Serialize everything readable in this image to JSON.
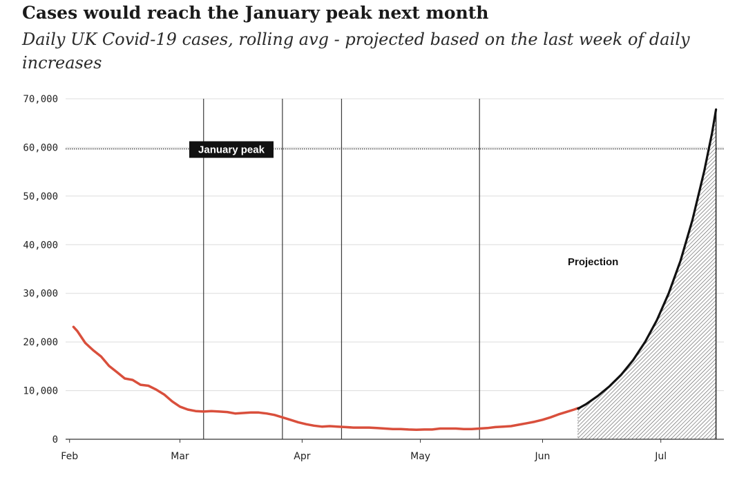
{
  "chart_data": {
    "type": "line",
    "title": "Cases would reach the January peak next month",
    "subtitle": "Daily UK Covid-19 cases, rolling avg - projected based on the last week of daily increases",
    "xlabel": "",
    "ylabel": "",
    "ylim": [
      0,
      70000
    ],
    "y_ticks": [
      0,
      10000,
      20000,
      30000,
      40000,
      50000,
      60000,
      70000
    ],
    "y_tick_labels": [
      "0",
      "10,000",
      "20,000",
      "30,000",
      "40,000",
      "50,000",
      "60,000",
      "70,000"
    ],
    "x_ticks": [
      {
        "label": "Feb",
        "day": 0
      },
      {
        "label": "Mar",
        "day": 28
      },
      {
        "label": "Apr",
        "day": 59
      },
      {
        "label": "May",
        "day": 89
      },
      {
        "label": "Jun",
        "day": 120
      },
      {
        "label": "Jul",
        "day": 150
      }
    ],
    "xlim": [
      -1,
      166
    ],
    "grid": true,
    "reference_line": {
      "label": "January peak",
      "value": 59700
    },
    "vertical_markers": [
      34,
      54,
      69,
      104
    ],
    "series": [
      {
        "name": "",
        "color": "#d94f3c",
        "style": "actual",
        "days": [
          1,
          2,
          4,
          6,
          8,
          10,
          12,
          14,
          16,
          18,
          20,
          22,
          24,
          26,
          28,
          30,
          32,
          34,
          36,
          38,
          40,
          42,
          44,
          46,
          48,
          50,
          52,
          54,
          56,
          58,
          60,
          62,
          64,
          66,
          68,
          70,
          72,
          74,
          76,
          78,
          80,
          82,
          84,
          86,
          88,
          90,
          92,
          94,
          96,
          98,
          100,
          102,
          104,
          106,
          108,
          110,
          112,
          114,
          116,
          118,
          120,
          122,
          124,
          126,
          128,
          129
        ],
        "values": [
          23100,
          22200,
          19800,
          18300,
          17000,
          15100,
          13800,
          12500,
          12200,
          11200,
          11000,
          10200,
          9200,
          7800,
          6700,
          6100,
          5800,
          5700,
          5800,
          5700,
          5600,
          5300,
          5400,
          5500,
          5500,
          5300,
          5000,
          4500,
          4000,
          3500,
          3100,
          2800,
          2600,
          2700,
          2600,
          2500,
          2400,
          2400,
          2400,
          2300,
          2200,
          2100,
          2100,
          2000,
          1950,
          2000,
          2000,
          2200,
          2200,
          2200,
          2100,
          2100,
          2200,
          2300,
          2500,
          2600,
          2700,
          3000,
          3300,
          3600,
          4000,
          4500,
          5100,
          5600,
          6100,
          6400
        ]
      },
      {
        "name": "Projection",
        "color": "#111111",
        "style": "projection",
        "days": [
          129,
          131,
          134,
          137,
          140,
          143,
          146,
          149,
          152,
          155,
          158,
          161,
          163,
          164
        ],
        "values": [
          6300,
          7200,
          8900,
          10900,
          13300,
          16300,
          20000,
          24500,
          30000,
          36700,
          45000,
          55100,
          63000,
          67800
        ]
      }
    ]
  }
}
